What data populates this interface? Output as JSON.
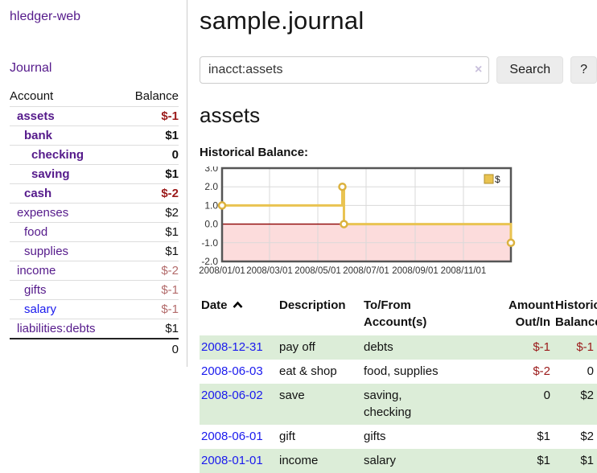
{
  "colors": {
    "link_purple": "#551a8b",
    "link_blue": "#1a1aee",
    "neg_strong": "#9b1a1a",
    "neg_soft": "#b36b6b",
    "stripe_green": "#dcedd8",
    "chart_line": "#e9c351",
    "chart_marker_stroke": "#dcb23e",
    "chart_negative_fill": "#fcdcdc",
    "chart_zero_line": "#8b0000",
    "chart_border": "#555555",
    "chart_grid": "#d9d9d9"
  },
  "sidebar": {
    "app_title": "hledger-web",
    "journal_label": "Journal",
    "accounts_table": {
      "account_header": "Account",
      "balance_header": "Balance",
      "rows": [
        {
          "name": "assets",
          "depth": 1,
          "bold": true,
          "balance": "$-1",
          "style": "neg-strong"
        },
        {
          "name": "bank",
          "depth": 2,
          "bold": true,
          "balance": "$1",
          "style": "pos"
        },
        {
          "name": "checking",
          "depth": 3,
          "bold": true,
          "balance": "0",
          "style": "pos"
        },
        {
          "name": "saving",
          "depth": 3,
          "bold": true,
          "balance": "$1",
          "style": "pos"
        },
        {
          "name": "cash",
          "depth": 2,
          "bold": true,
          "balance": "$-2",
          "style": "neg-strong"
        },
        {
          "name": "expenses",
          "depth": 1,
          "bold": false,
          "balance": "$2",
          "style": "pos"
        },
        {
          "name": "food",
          "depth": 2,
          "bold": false,
          "balance": "$1",
          "style": "pos"
        },
        {
          "name": "supplies",
          "depth": 2,
          "bold": false,
          "balance": "$1",
          "style": "pos"
        },
        {
          "name": "income",
          "depth": 1,
          "bold": false,
          "balance": "$-2",
          "style": "neg-soft"
        },
        {
          "name": "gifts",
          "depth": 2,
          "bold": false,
          "balance": "$-1",
          "style": "neg-soft"
        },
        {
          "name": "salary",
          "depth": 2,
          "bold": false,
          "balance": "$-1",
          "style": "neg-soft",
          "link_blue": true
        },
        {
          "name": "liabilities:debts",
          "depth": 1,
          "bold": false,
          "balance": "$1",
          "style": "pos"
        }
      ],
      "total": "0"
    }
  },
  "main": {
    "title": "sample.journal",
    "search": {
      "value": "inacct:assets",
      "clear_icon": "×",
      "button_label": "Search",
      "help_label": "?"
    },
    "account_heading": "assets",
    "chart_heading": "Historical Balance:"
  },
  "chart_data": {
    "type": "line",
    "step": true,
    "title": "Historical Balance:",
    "series": [
      {
        "name": "$",
        "points": [
          [
            "2008-01-01",
            1
          ],
          [
            "2008-06-01",
            2
          ],
          [
            "2008-06-03",
            0
          ],
          [
            "2008-12-31",
            -1
          ]
        ]
      }
    ],
    "x_range": [
      "2008-01-01",
      "2008-12-31"
    ],
    "y_range": [
      -2,
      3
    ],
    "y_ticks": [
      "3.0",
      "2.0",
      "1.0",
      "0.0",
      "-1.0",
      "-2.0"
    ],
    "x_ticks": [
      "2008/01/01",
      "2008/03/01",
      "2008/05/01",
      "2008/07/01",
      "2008/09/01",
      "2008/11/01"
    ],
    "legend": {
      "label": "$",
      "position": "top-right"
    },
    "grid": true,
    "negative_region_shaded": true
  },
  "register": {
    "headers": {
      "date": "Date",
      "description": "Description",
      "account": "To/From\nAccount(s)",
      "amount": "Amount\nOut/In",
      "balance": "Historical\nBalance"
    },
    "rows": [
      {
        "date": "2008-12-31",
        "description": "pay off",
        "accounts": "debts",
        "amount": "$-1",
        "amount_neg": true,
        "balance": "$-1",
        "balance_neg": true,
        "stripe": true
      },
      {
        "date": "2008-06-03",
        "description": "eat & shop",
        "accounts": "food, supplies",
        "amount": "$-2",
        "amount_neg": true,
        "balance": "0",
        "balance_neg": false,
        "stripe": false
      },
      {
        "date": "2008-06-02",
        "description": "save",
        "accounts": "saving,\nchecking",
        "amount": "0",
        "amount_neg": false,
        "balance": "$2",
        "balance_neg": false,
        "stripe": true
      },
      {
        "date": "2008-06-01",
        "description": "gift",
        "accounts": "gifts",
        "amount": "$1",
        "amount_neg": false,
        "balance": "$2",
        "balance_neg": false,
        "stripe": false
      },
      {
        "date": "2008-01-01",
        "description": "income",
        "accounts": "salary",
        "amount": "$1",
        "amount_neg": false,
        "balance": "$1",
        "balance_neg": false,
        "stripe": true
      }
    ]
  }
}
